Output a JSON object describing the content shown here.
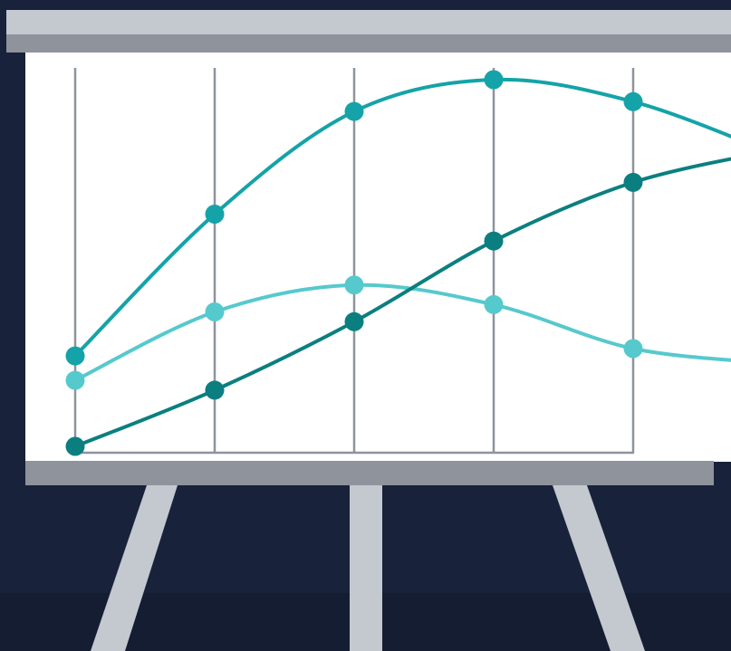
{
  "colors": {
    "background": "#18223a",
    "background_bottom_band": "#141d31",
    "board_frame_light": "#c4c8cf",
    "board_frame_dark": "#8e939c",
    "board_surface": "#ffffff",
    "gridline": "#8e939c",
    "leg": "#c4c8cf"
  },
  "chart_data": {
    "type": "line",
    "x_categories": 6,
    "series": [
      {
        "color": "#14a3a8",
        "values": [
          47,
          105,
          147,
          160,
          151,
          130
        ]
      },
      {
        "color": "#56c9cd",
        "values": [
          37,
          65,
          76,
          68,
          50,
          44
        ]
      },
      {
        "color": "#0b7f80",
        "values": [
          10,
          33,
          61,
          94,
          118,
          131
        ]
      }
    ],
    "ylim": [
      0,
      170
    ],
    "grid": true,
    "legend": false
  }
}
